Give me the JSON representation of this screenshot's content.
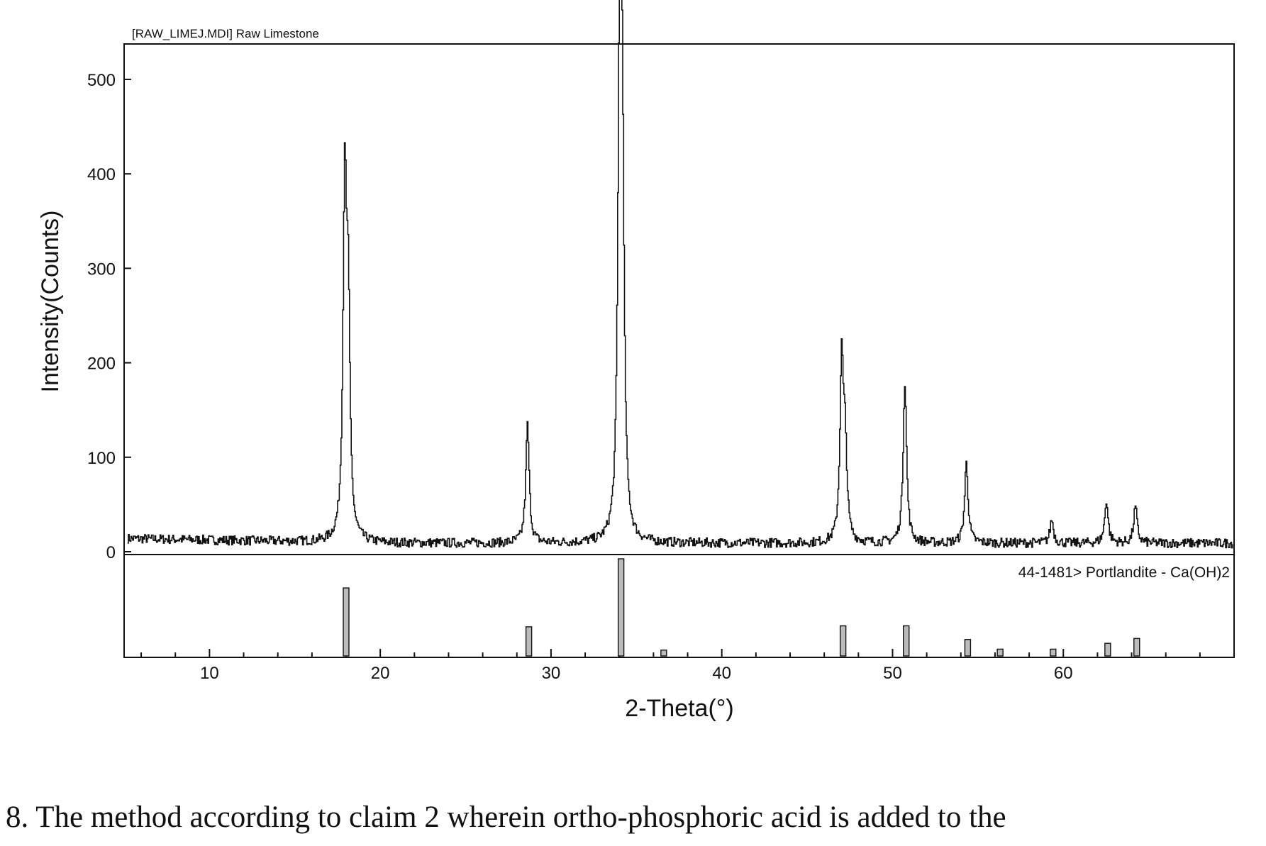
{
  "chart_data": {
    "type": "line",
    "title": "[RAW_LIMEJ.MDI] Raw Limestone",
    "xlabel": "2-Theta(°)",
    "ylabel": "Intensity(Counts)",
    "xlim": [
      5,
      70
    ],
    "ylim": [
      0,
      530
    ],
    "xticks": [
      10,
      20,
      30,
      40,
      50,
      60
    ],
    "yticks": [
      0,
      100,
      200,
      300,
      400,
      500
    ],
    "grid": false,
    "series": [
      {
        "background": {
          "start": 14,
          "mid": 9,
          "end": 9
        },
        "peaks": [
          {
            "x": 17.9,
            "y": 365
          },
          {
            "x": 18.1,
            "y": 230
          },
          {
            "x": 28.6,
            "y": 125
          },
          {
            "x": 34.0,
            "y": 510
          },
          {
            "x": 34.15,
            "y": 370
          },
          {
            "x": 47.0,
            "y": 188
          },
          {
            "x": 47.2,
            "y": 95
          },
          {
            "x": 50.7,
            "y": 170
          },
          {
            "x": 54.3,
            "y": 85
          },
          {
            "x": 59.3,
            "y": 25
          },
          {
            "x": 62.5,
            "y": 45
          },
          {
            "x": 64.2,
            "y": 38
          }
        ]
      }
    ],
    "reference": {
      "label": "44-1481> Portlandite - Ca(OH)2",
      "sticks": [
        {
          "x": 18.0,
          "rel": 70
        },
        {
          "x": 28.7,
          "rel": 30
        },
        {
          "x": 34.1,
          "rel": 100
        },
        {
          "x": 36.6,
          "rel": 6
        },
        {
          "x": 47.1,
          "rel": 31
        },
        {
          "x": 50.8,
          "rel": 31
        },
        {
          "x": 54.4,
          "rel": 17
        },
        {
          "x": 56.3,
          "rel": 7
        },
        {
          "x": 59.4,
          "rel": 7
        },
        {
          "x": 62.6,
          "rel": 13
        },
        {
          "x": 64.3,
          "rel": 18
        }
      ]
    }
  },
  "caption": "8.  The method according to claim 2 wherein ortho-phosphoric acid is added to the"
}
